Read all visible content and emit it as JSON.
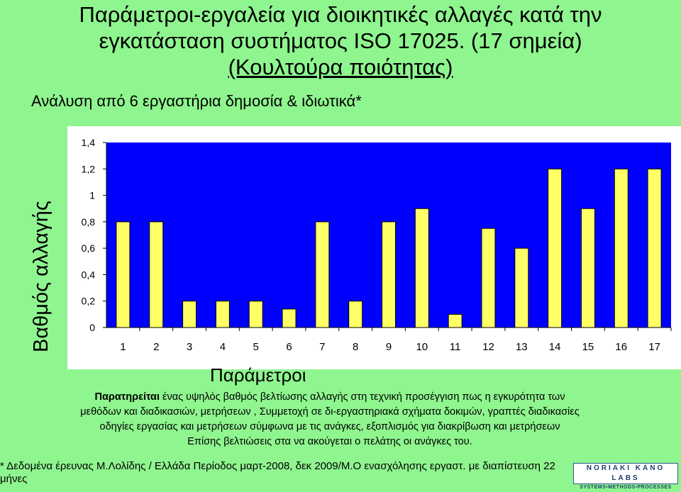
{
  "header": {
    "title_line1": "Παράμετροι-εργαλεία για διοικητικές αλλαγές  κατά την",
    "title_line2": "εγκατάσταση συστήματος  ISO 17025. (17 σημεία)",
    "title_line3": "(Κουλτούρα ποιότητας)",
    "subtitle": "Ανάλυση από 6 εργαστήρια δημοσία & ιδιωτικά*"
  },
  "chart_data": {
    "type": "bar",
    "categories": [
      "1",
      "2",
      "3",
      "4",
      "5",
      "6",
      "7",
      "8",
      "9",
      "10",
      "11",
      "12",
      "13",
      "14",
      "15",
      "16",
      "17"
    ],
    "values": [
      0.8,
      0.8,
      0.2,
      0.2,
      0.2,
      0.14,
      0.8,
      0.2,
      0.8,
      0.9,
      0.1,
      0.75,
      0.6,
      1.2,
      0.9,
      1.2,
      1.2
    ],
    "xlabel": "Παράμετροι",
    "ylabel": "Βαθμός αλλαγής",
    "ylim": [
      0,
      1.4
    ],
    "yticks": [
      "0",
      "0,2",
      "0,4",
      "0,6",
      "0,8",
      "1",
      "1,2",
      "1,4"
    ],
    "grid": false,
    "colors": {
      "bar_fill": "#ffff66",
      "bar_stroke": "#000000",
      "plot_bg": "#0000ff",
      "background": "#8ff58f"
    }
  },
  "note": {
    "line1_bold": "Παρατηρείται",
    "line1_rest": " ένας υψηλός βαθμός  βελτίωσης αλλαγής στη τεχνική προσέγγιση πως  η εγκυρότητα των",
    "line2": "μεθόδων και διαδικασιών, μετρήσεων , Συμμετοχή σε  δι-εργαστηριακά σχήματα δοκιμών, γραπτές διαδικασίες",
    "line3": "οδηγίες εργασίας και μετρήσεων σύμφωνα με τις  ανάγκες, εξοπλισμός για διακρίβωση και  μετρήσεων",
    "line4": "Επίσης βελτιώσεις στα να ακούγεται ο πελάτης  οι ανάγκες του."
  },
  "footer": {
    "text": "* Δεδομένα έρευνας Μ.Λολίδης /  Ελλάδα Περίοδος μαρτ-2008, δεκ 2009/Μ.Ο ενασχόλησης εργαστ.  με διαπίστευση 22 μήνες"
  },
  "logo": {
    "line1": "NORIAKI KANO LABS",
    "line2": "SYSTEMS•METHODS•PROCESSES"
  }
}
